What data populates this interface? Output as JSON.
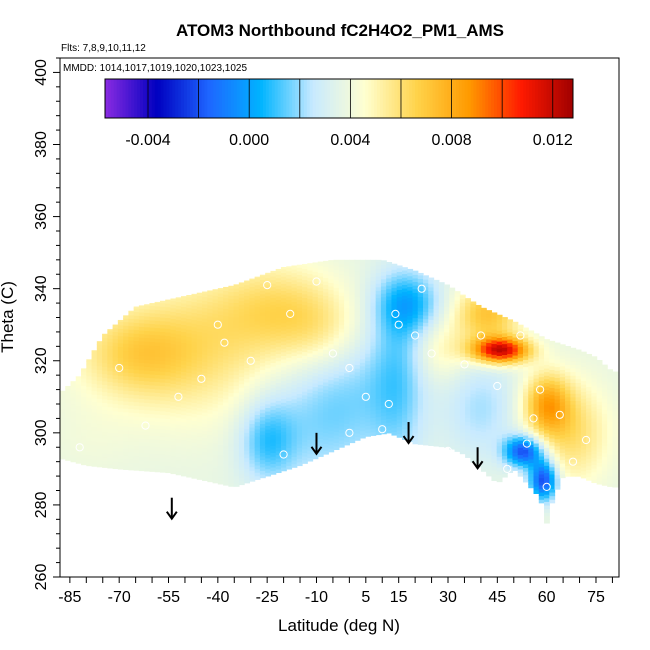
{
  "chart_data": {
    "type": "heatmap",
    "title": "ATOM3 Northbound fC2H4O2_PM1_AMS",
    "flights_label": "Flts: 7,8,9,10,11,12",
    "dates_label": "MMDD: 1014,1017,1019,1020,1023,1025",
    "xlabel": "Latitude (deg N)",
    "ylabel": "Theta (C)",
    "xlim": [
      -88,
      82
    ],
    "ylim": [
      260,
      404
    ],
    "x_ticks": [
      -85,
      -70,
      -55,
      -40,
      -25,
      -10,
      5,
      15,
      30,
      45,
      60,
      75
    ],
    "x_minor_step": 5,
    "y_ticks": [
      260,
      280,
      300,
      320,
      340,
      360,
      380,
      400
    ],
    "colorbar": {
      "ticks": [
        -0.004,
        0.0,
        0.004,
        0.008,
        0.012
      ],
      "tick_labels": [
        "-0.004",
        "0.000",
        "0.004",
        "0.008",
        "0.012"
      ],
      "range": [
        -0.0057,
        0.0128
      ],
      "boundaries": [
        -0.004,
        -0.002,
        0.0,
        0.002,
        0.004,
        0.006,
        0.008,
        0.01,
        0.012
      ],
      "colors": [
        "#8a2be2",
        "#0000c0",
        "#1e66ff",
        "#00b4ff",
        "#c8eaff",
        "#ffffd0",
        "#ffd34a",
        "#ff9a00",
        "#ff1a00",
        "#a00000"
      ]
    },
    "arrows_x": [
      -54,
      -10,
      18,
      39
    ],
    "grid": false,
    "field": {
      "shape": "curtain",
      "top_boundary": [
        [
          -88,
          311
        ],
        [
          -82,
          316
        ],
        [
          -75,
          327
        ],
        [
          -65,
          335
        ],
        [
          -50,
          338
        ],
        [
          -35,
          341
        ],
        [
          -20,
          346
        ],
        [
          -5,
          348
        ],
        [
          10,
          348
        ],
        [
          20,
          345
        ],
        [
          30,
          341
        ],
        [
          40,
          335
        ],
        [
          50,
          331
        ],
        [
          60,
          326
        ],
        [
          70,
          323
        ],
        [
          75,
          321
        ],
        [
          80,
          317
        ]
      ],
      "bottom_boundary": [
        [
          80,
          285
        ],
        [
          75,
          286
        ],
        [
          70,
          288
        ],
        [
          65,
          288
        ],
        [
          62,
          282
        ],
        [
          60,
          275
        ],
        [
          58,
          282
        ],
        [
          55,
          285
        ],
        [
          50,
          290
        ],
        [
          45,
          286
        ],
        [
          40,
          290
        ],
        [
          35,
          294
        ],
        [
          30,
          296
        ],
        [
          20,
          297
        ],
        [
          12,
          300
        ],
        [
          5,
          299
        ],
        [
          -5,
          295
        ],
        [
          -15,
          291
        ],
        [
          -25,
          288
        ],
        [
          -35,
          285
        ],
        [
          -45,
          287
        ],
        [
          -55,
          289
        ],
        [
          -70,
          290
        ],
        [
          -80,
          291
        ],
        [
          -88,
          293
        ]
      ],
      "features": [
        {
          "x": -48,
          "y": 323,
          "value": 0.0058,
          "sx": 20,
          "sy": 14
        },
        {
          "x": -65,
          "y": 322,
          "value": 0.0056,
          "sx": 12,
          "sy": 8
        },
        {
          "x": -22,
          "y": 335,
          "value": 0.0057,
          "sx": 14,
          "sy": 9
        },
        {
          "x": -8,
          "y": 328,
          "value": 0.0052,
          "sx": 10,
          "sy": 8
        },
        {
          "x": -8,
          "y": 305,
          "value": 0.0018,
          "sx": 12,
          "sy": 14
        },
        {
          "x": -25,
          "y": 298,
          "value": 0.0012,
          "sx": 6,
          "sy": 8
        },
        {
          "x": 5,
          "y": 318,
          "value": 0.0028,
          "sx": 10,
          "sy": 14
        },
        {
          "x": 18,
          "y": 336,
          "value": 0.0008,
          "sx": 7,
          "sy": 6
        },
        {
          "x": 15,
          "y": 315,
          "value": 0.0018,
          "sx": 6,
          "sy": 18
        },
        {
          "x": 28,
          "y": 323,
          "value": 0.005,
          "sx": 6,
          "sy": 6
        },
        {
          "x": 42,
          "y": 333,
          "value": 0.0072,
          "sx": 7,
          "sy": 6
        },
        {
          "x": 40,
          "y": 307,
          "value": 0.0022,
          "sx": 8,
          "sy": 10
        },
        {
          "x": 46,
          "y": 323,
          "value": 0.0118,
          "sx": 6,
          "sy": 2.5
        },
        {
          "x": 60,
          "y": 308,
          "value": 0.0078,
          "sx": 5,
          "sy": 6
        },
        {
          "x": 53,
          "y": 295,
          "value": -0.0022,
          "sx": 4,
          "sy": 3
        },
        {
          "x": 59,
          "y": 287,
          "value": -0.0025,
          "sx": 3,
          "sy": 4
        },
        {
          "x": 68,
          "y": 300,
          "value": 0.006,
          "sx": 8,
          "sy": 10
        },
        {
          "x": -80,
          "y": 298,
          "value": 0.004,
          "sx": 10,
          "sy": 8
        }
      ],
      "base_value": 0.0037
    },
    "points": [
      {
        "x": -70,
        "y": 318
      },
      {
        "x": -52,
        "y": 310
      },
      {
        "x": -45,
        "y": 315
      },
      {
        "x": -38,
        "y": 325
      },
      {
        "x": -30,
        "y": 320
      },
      {
        "x": -25,
        "y": 341
      },
      {
        "x": -18,
        "y": 333
      },
      {
        "x": -10,
        "y": 342
      },
      {
        "x": -5,
        "y": 322
      },
      {
        "x": 0,
        "y": 318
      },
      {
        "x": 5,
        "y": 310
      },
      {
        "x": 10,
        "y": 301
      },
      {
        "x": 12,
        "y": 308
      },
      {
        "x": 15,
        "y": 330
      },
      {
        "x": 20,
        "y": 327
      },
      {
        "x": 22,
        "y": 340
      },
      {
        "x": 25,
        "y": 322
      },
      {
        "x": 30,
        "y": 295
      },
      {
        "x": 35,
        "y": 319
      },
      {
        "x": 40,
        "y": 327
      },
      {
        "x": 45,
        "y": 313
      },
      {
        "x": 48,
        "y": 290
      },
      {
        "x": 52,
        "y": 327
      },
      {
        "x": 54,
        "y": 297
      },
      {
        "x": 56,
        "y": 304
      },
      {
        "x": 58,
        "y": 312
      },
      {
        "x": 60,
        "y": 285
      },
      {
        "x": 64,
        "y": 305
      },
      {
        "x": 68,
        "y": 292
      },
      {
        "x": 72,
        "y": 298
      },
      {
        "x": -62,
        "y": 302
      },
      {
        "x": -82,
        "y": 296
      },
      {
        "x": -20,
        "y": 294
      },
      {
        "x": 0,
        "y": 300
      },
      {
        "x": 14,
        "y": 333
      },
      {
        "x": -40,
        "y": 330
      }
    ]
  }
}
